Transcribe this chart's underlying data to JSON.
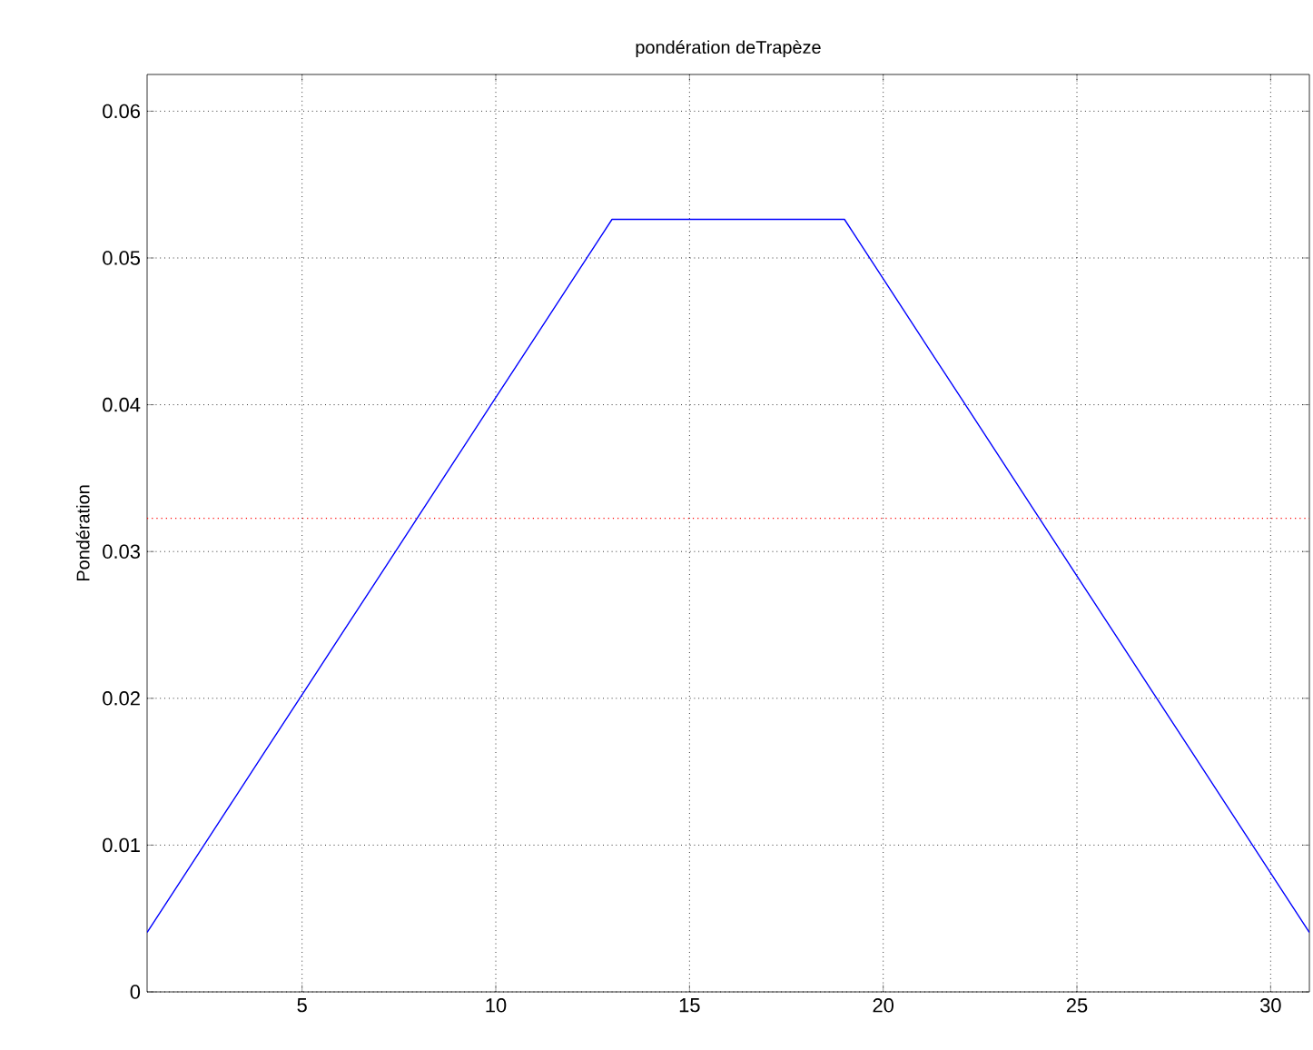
{
  "chart_data": {
    "type": "line",
    "title": "pondération deTrapèze",
    "ylabel": "Pondération",
    "x": [
      1,
      2,
      3,
      4,
      5,
      6,
      7,
      8,
      9,
      10,
      11,
      12,
      13,
      14,
      15,
      16,
      17,
      18,
      19,
      20,
      21,
      22,
      23,
      24,
      25,
      26,
      27,
      28,
      29,
      30,
      31
    ],
    "series": [
      {
        "color": "#0000ff",
        "values": [
          0.00405,
          0.0081,
          0.01215,
          0.0162,
          0.02024,
          0.02429,
          0.02834,
          0.03239,
          0.03644,
          0.04049,
          0.04453,
          0.04858,
          0.05263,
          0.05263,
          0.05263,
          0.05263,
          0.05263,
          0.05263,
          0.05263,
          0.04858,
          0.04453,
          0.04049,
          0.03644,
          0.03239,
          0.02834,
          0.02429,
          0.02024,
          0.0162,
          0.01215,
          0.0081,
          0.00405
        ]
      }
    ],
    "xlim": [
      1,
      31
    ],
    "ylim": [
      0,
      0.0625
    ],
    "xticks": [
      5,
      10,
      15,
      20,
      25,
      30
    ],
    "yticks": [
      0,
      0.01,
      0.02,
      0.03,
      0.04,
      0.05,
      0.06
    ],
    "ref_lines": [
      {
        "axis": "y",
        "value": 0.03226,
        "color": "#ff0000",
        "line_style": "dotted"
      }
    ],
    "grid": true,
    "marker": "none",
    "line_style": "solid"
  }
}
